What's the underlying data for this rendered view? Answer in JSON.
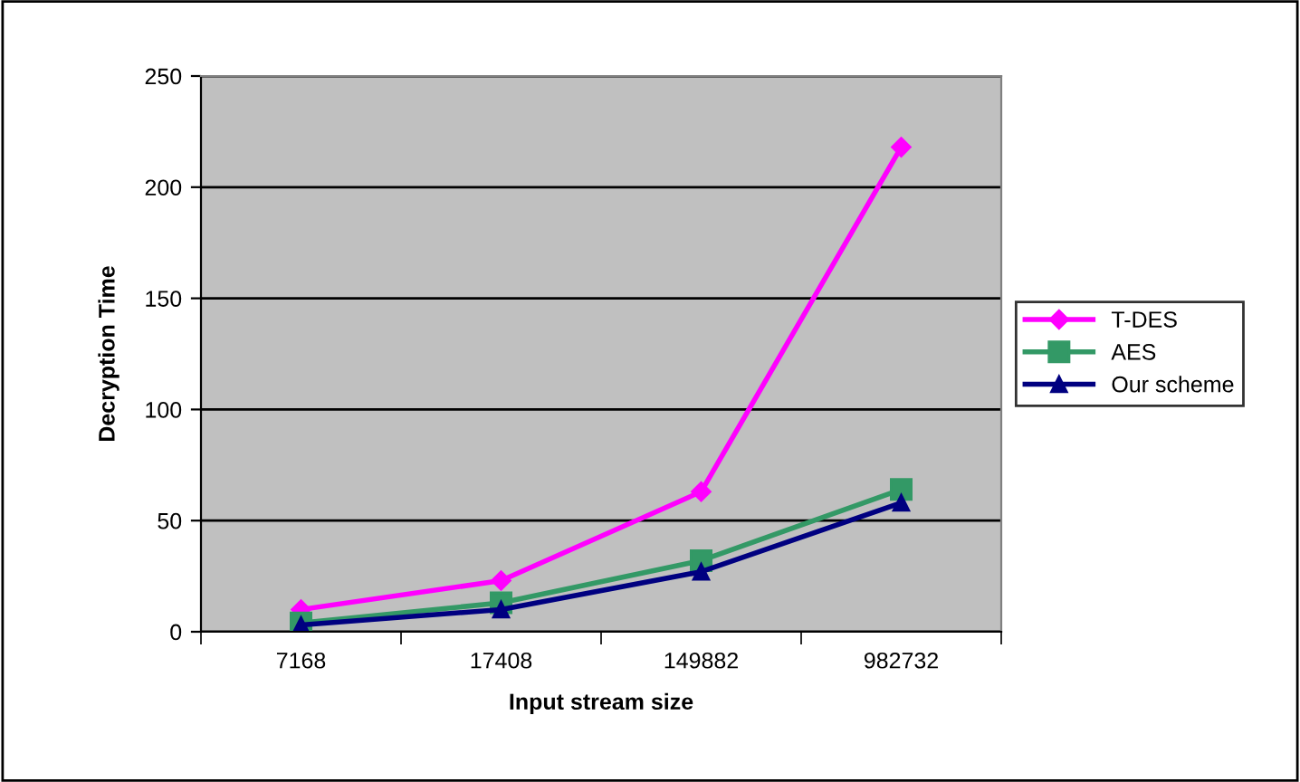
{
  "chart_data": {
    "type": "line",
    "xlabel": "Input stream size",
    "ylabel": "Decryption Time",
    "categories": [
      "7168",
      "17408",
      "149882",
      "982732"
    ],
    "series": [
      {
        "name": "T-DES",
        "color": "#ff00ff",
        "marker": "diamond",
        "values": [
          10,
          23,
          63,
          218
        ]
      },
      {
        "name": "AES",
        "color": "#339966",
        "marker": "square",
        "values": [
          4,
          13,
          32,
          64
        ]
      },
      {
        "name": "Our scheme",
        "color": "#000080",
        "marker": "triangle",
        "values": [
          3,
          10,
          27,
          58
        ]
      }
    ],
    "ylim": [
      0,
      250
    ],
    "yticks": [
      0,
      50,
      100,
      150,
      200,
      250
    ],
    "grid": "y",
    "legend": "right",
    "line_style": "solid"
  }
}
